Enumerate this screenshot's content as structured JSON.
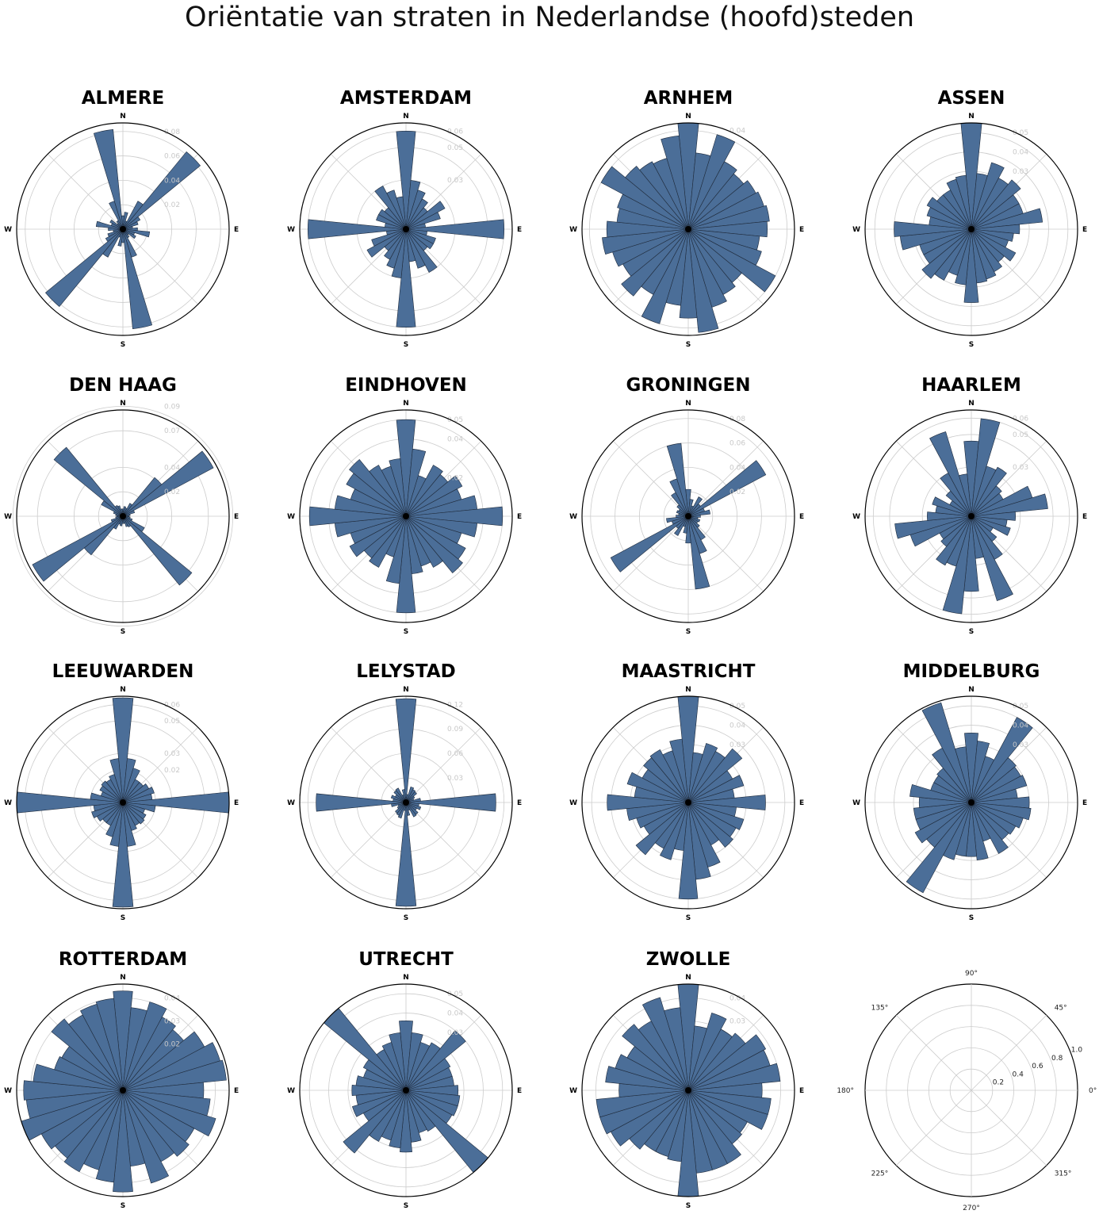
{
  "title": "Oriëntatie van straten in Nederlandse (hoofd)steden",
  "colors": {
    "bar": "#4b6e98",
    "bar_edge": "#1f2b3c",
    "grid": "#cccccc",
    "frame": "#000000",
    "radial_label": "#c8c8c8"
  },
  "chart_data": [
    {
      "type": "polar-bar",
      "title": "ALMERE",
      "direction_labels": [
        "N",
        "E",
        "S",
        "W"
      ],
      "rlim": [
        0,
        0.087
      ],
      "r_ticks": [
        0.02,
        0.04,
        0.06,
        0.08
      ],
      "values": [
        0.011,
        0.014,
        0.007,
        0.026,
        0.082,
        0.016,
        0.013,
        0.008,
        0.012,
        0.022,
        0.01,
        0.012,
        0.006,
        0.008,
        0.024,
        0.082,
        0.011,
        0.014,
        0.007,
        0.026,
        0.082,
        0.016,
        0.013,
        0.008,
        0.012,
        0.022,
        0.01,
        0.012,
        0.006,
        0.008,
        0.024,
        0.082
      ]
    },
    {
      "type": "polar-bar",
      "title": "AMSTERDAM",
      "direction_labels": [
        "N",
        "E",
        "S",
        "W"
      ],
      "rlim": [
        0,
        0.065
      ],
      "r_ticks": [
        0.03,
        0.05,
        0.06
      ],
      "values": [
        0.06,
        0.03,
        0.025,
        0.021,
        0.017,
        0.027,
        0.022,
        0.012,
        0.06,
        0.013,
        0.019,
        0.019,
        0.017,
        0.03,
        0.025,
        0.02,
        0.06,
        0.03,
        0.025,
        0.021,
        0.017,
        0.027,
        0.022,
        0.012,
        0.06,
        0.013,
        0.019,
        0.019,
        0.017,
        0.03,
        0.025,
        0.02
      ]
    },
    {
      "type": "polar-bar",
      "title": "ARNHEM",
      "direction_labels": [
        "N",
        "E",
        "S",
        "W"
      ],
      "rlim": [
        0,
        0.043
      ],
      "r_ticks": [
        0.04
      ],
      "values": [
        0.043,
        0.031,
        0.04,
        0.031,
        0.029,
        0.031,
        0.032,
        0.033,
        0.032,
        0.029,
        0.031,
        0.04,
        0.028,
        0.03,
        0.033,
        0.042,
        0.036,
        0.031,
        0.04,
        0.03,
        0.035,
        0.03,
        0.032,
        0.035,
        0.033,
        0.029,
        0.03,
        0.04,
        0.033,
        0.031,
        0.03,
        0.038
      ]
    },
    {
      "type": "polar-bar",
      "title": "ASSEN",
      "direction_labels": [
        "N",
        "E",
        "S",
        "W"
      ],
      "rlim": [
        0,
        0.055
      ],
      "r_ticks": [
        0.03,
        0.04,
        0.05
      ],
      "values": [
        0.055,
        0.029,
        0.036,
        0.03,
        0.033,
        0.028,
        0.028,
        0.037,
        0.025,
        0.022,
        0.02,
        0.026,
        0.022,
        0.025,
        0.027,
        0.028,
        0.038,
        0.029,
        0.025,
        0.03,
        0.033,
        0.028,
        0.028,
        0.037,
        0.04,
        0.022,
        0.024,
        0.026,
        0.023,
        0.023,
        0.027,
        0.028
      ]
    },
    {
      "type": "polar-bar",
      "title": "DEN HAAG",
      "direction_labels": [
        "N",
        "E",
        "S",
        "W"
      ],
      "rlim": [
        0,
        0.087
      ],
      "r_ticks": [
        0.02,
        0.04,
        0.07,
        0.09
      ],
      "values": [
        0.006,
        0.008,
        0.007,
        0.012,
        0.041,
        0.084,
        0.01,
        0.006,
        0.005,
        0.006,
        0.008,
        0.02,
        0.073,
        0.01,
        0.009,
        0.006,
        0.006,
        0.008,
        0.007,
        0.012,
        0.041,
        0.084,
        0.01,
        0.006,
        0.005,
        0.006,
        0.008,
        0.02,
        0.073,
        0.01,
        0.009,
        0.006
      ]
    },
    {
      "type": "polar-bar",
      "title": "EINDHOVEN",
      "direction_labels": [
        "N",
        "E",
        "S",
        "W"
      ],
      "rlim": [
        0,
        0.055
      ],
      "r_ticks": [
        0.02,
        0.04,
        0.05
      ],
      "values": [
        0.05,
        0.035,
        0.022,
        0.03,
        0.028,
        0.033,
        0.03,
        0.037,
        0.05,
        0.037,
        0.03,
        0.035,
        0.038,
        0.03,
        0.027,
        0.03,
        0.05,
        0.035,
        0.022,
        0.03,
        0.028,
        0.033,
        0.03,
        0.037,
        0.05,
        0.037,
        0.03,
        0.035,
        0.038,
        0.03,
        0.027,
        0.03
      ]
    },
    {
      "type": "polar-bar",
      "title": "GRONINGEN",
      "direction_labels": [
        "N",
        "E",
        "S",
        "W"
      ],
      "rlim": [
        0,
        0.087
      ],
      "r_ticks": [
        0.02,
        0.04,
        0.06,
        0.08
      ],
      "values": [
        0.022,
        0.014,
        0.009,
        0.018,
        0.013,
        0.072,
        0.014,
        0.018,
        0.01,
        0.008,
        0.01,
        0.009,
        0.012,
        0.022,
        0.032,
        0.06,
        0.022,
        0.014,
        0.009,
        0.018,
        0.013,
        0.072,
        0.014,
        0.018,
        0.01,
        0.008,
        0.01,
        0.009,
        0.012,
        0.022,
        0.032,
        0.06
      ]
    },
    {
      "type": "polar-bar",
      "title": "HAARLEM",
      "direction_labels": [
        "N",
        "E",
        "S",
        "W"
      ],
      "rlim": [
        0,
        0.065
      ],
      "r_ticks": [
        0.03,
        0.05,
        0.06
      ],
      "values": [
        0.046,
        0.06,
        0.032,
        0.034,
        0.024,
        0.022,
        0.039,
        0.047,
        0.027,
        0.022,
        0.025,
        0.015,
        0.02,
        0.03,
        0.054,
        0.026,
        0.046,
        0.06,
        0.032,
        0.034,
        0.024,
        0.022,
        0.039,
        0.047,
        0.027,
        0.022,
        0.025,
        0.015,
        0.02,
        0.03,
        0.054,
        0.026
      ]
    },
    {
      "type": "polar-bar",
      "title": "LEEUWARDEN",
      "direction_labels": [
        "N",
        "E",
        "S",
        "W"
      ],
      "rlim": [
        0,
        0.065
      ],
      "r_ticks": [
        0.02,
        0.03,
        0.05,
        0.06
      ],
      "values": [
        0.064,
        0.027,
        0.022,
        0.016,
        0.016,
        0.018,
        0.02,
        0.018,
        0.065,
        0.02,
        0.014,
        0.016,
        0.017,
        0.016,
        0.018,
        0.027,
        0.064,
        0.027,
        0.022,
        0.016,
        0.016,
        0.018,
        0.02,
        0.018,
        0.065,
        0.02,
        0.014,
        0.016,
        0.017,
        0.016,
        0.018,
        0.027
      ]
    },
    {
      "type": "polar-bar",
      "title": "LELYSTAD",
      "direction_labels": [
        "N",
        "E",
        "S",
        "W"
      ],
      "rlim": [
        0,
        0.13
      ],
      "r_ticks": [
        0.03,
        0.06,
        0.09,
        0.12
      ],
      "values": [
        0.127,
        0.01,
        0.02,
        0.018,
        0.017,
        0.012,
        0.01,
        0.018,
        0.11,
        0.016,
        0.019,
        0.015,
        0.019,
        0.02,
        0.01,
        0.016,
        0.127,
        0.01,
        0.02,
        0.018,
        0.017,
        0.012,
        0.01,
        0.018,
        0.11,
        0.016,
        0.019,
        0.015,
        0.019,
        0.02,
        0.01,
        0.016
      ]
    },
    {
      "type": "polar-bar",
      "title": "MAASTRICHT",
      "direction_labels": [
        "N",
        "E",
        "S",
        "W"
      ],
      "rlim": [
        0,
        0.055
      ],
      "r_ticks": [
        0.03,
        0.04,
        0.05
      ],
      "values": [
        0.055,
        0.026,
        0.032,
        0.03,
        0.036,
        0.026,
        0.03,
        0.024,
        0.04,
        0.025,
        0.03,
        0.028,
        0.03,
        0.025,
        0.035,
        0.04,
        0.05,
        0.025,
        0.031,
        0.027,
        0.035,
        0.026,
        0.028,
        0.032,
        0.042,
        0.028,
        0.033,
        0.027,
        0.03,
        0.031,
        0.028,
        0.033
      ]
    },
    {
      "type": "polar-bar",
      "title": "MIDDELBURG",
      "direction_labels": [
        "N",
        "E",
        "S",
        "W"
      ],
      "rlim": [
        0,
        0.055
      ],
      "r_ticks": [
        0.03,
        0.04,
        0.05
      ],
      "values": [
        0.036,
        0.032,
        0.025,
        0.05,
        0.03,
        0.029,
        0.03,
        0.024,
        0.03,
        0.031,
        0.028,
        0.026,
        0.025,
        0.03,
        0.021,
        0.03,
        0.028,
        0.028,
        0.031,
        0.053,
        0.03,
        0.033,
        0.03,
        0.03,
        0.027,
        0.032,
        0.022,
        0.022,
        0.023,
        0.032,
        0.054,
        0.029
      ]
    },
    {
      "type": "polar-bar",
      "title": "ROTTERDAM",
      "direction_labels": [
        "N",
        "E",
        "S",
        "W"
      ],
      "rlim": [
        0,
        0.046
      ],
      "r_ticks": [
        0.02,
        0.03,
        0.04
      ],
      "values": [
        0.043,
        0.036,
        0.04,
        0.036,
        0.034,
        0.04,
        0.044,
        0.045,
        0.035,
        0.038,
        0.042,
        0.035,
        0.037,
        0.035,
        0.042,
        0.033,
        0.044,
        0.04,
        0.036,
        0.04,
        0.038,
        0.04,
        0.046,
        0.042,
        0.043,
        0.039,
        0.031,
        0.03,
        0.04,
        0.037,
        0.039,
        0.04
      ]
    },
    {
      "type": "polar-bar",
      "title": "UTRECHT",
      "direction_labels": [
        "N",
        "E",
        "S",
        "W"
      ],
      "rlim": [
        0,
        0.055
      ],
      "r_ticks": [
        0.03,
        0.04,
        0.05
      ],
      "values": [
        0.036,
        0.03,
        0.026,
        0.028,
        0.04,
        0.026,
        0.025,
        0.025,
        0.027,
        0.028,
        0.028,
        0.027,
        0.055,
        0.024,
        0.023,
        0.027,
        0.032,
        0.03,
        0.027,
        0.03,
        0.042,
        0.025,
        0.029,
        0.026,
        0.028,
        0.026,
        0.023,
        0.025,
        0.055,
        0.024,
        0.026,
        0.03
      ]
    },
    {
      "type": "polar-bar",
      "title": "ZWOLLE",
      "direction_labels": [
        "N",
        "E",
        "S",
        "W"
      ],
      "rlim": [
        0,
        0.046
      ],
      "r_ticks": [
        0.03,
        0.04
      ],
      "values": [
        0.046,
        0.028,
        0.035,
        0.03,
        0.032,
        0.038,
        0.037,
        0.04,
        0.032,
        0.036,
        0.036,
        0.029,
        0.03,
        0.036,
        0.036,
        0.036,
        0.046,
        0.031,
        0.03,
        0.03,
        0.033,
        0.038,
        0.04,
        0.04,
        0.03,
        0.036,
        0.033,
        0.03,
        0.037,
        0.034,
        0.042,
        0.036
      ]
    },
    {
      "type": "polar-axes",
      "title": "",
      "angle_labels": [
        "0°",
        "45°",
        "90°",
        "135°",
        "180°",
        "225°",
        "270°",
        "315°"
      ],
      "r_labels": [
        "0.2",
        "0.4",
        "0.6",
        "0.8",
        "1.0"
      ]
    }
  ]
}
